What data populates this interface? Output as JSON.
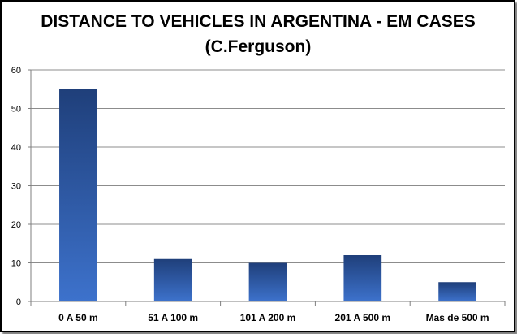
{
  "chart_data": {
    "type": "bar",
    "title": "DISTANCE TO VEHICLES IN ARGENTINA - EM CASES",
    "subtitle": "(C.Ferguson)",
    "categories": [
      "0 A 50 m",
      "51 A 100 m",
      "101 A 200 m",
      "201 A 500 m",
      "Mas de 500 m"
    ],
    "values": [
      55,
      11,
      10,
      12,
      5
    ],
    "ylim": [
      0,
      60
    ],
    "yticks": [
      0,
      10,
      20,
      30,
      40,
      50,
      60
    ],
    "grid": true,
    "legend": "none",
    "colors": {
      "bar_top": "#1f3f7a",
      "bar_bottom": "#3d72cc",
      "gridline": "#8c8c8c",
      "axis": "#7f7f7f"
    }
  }
}
